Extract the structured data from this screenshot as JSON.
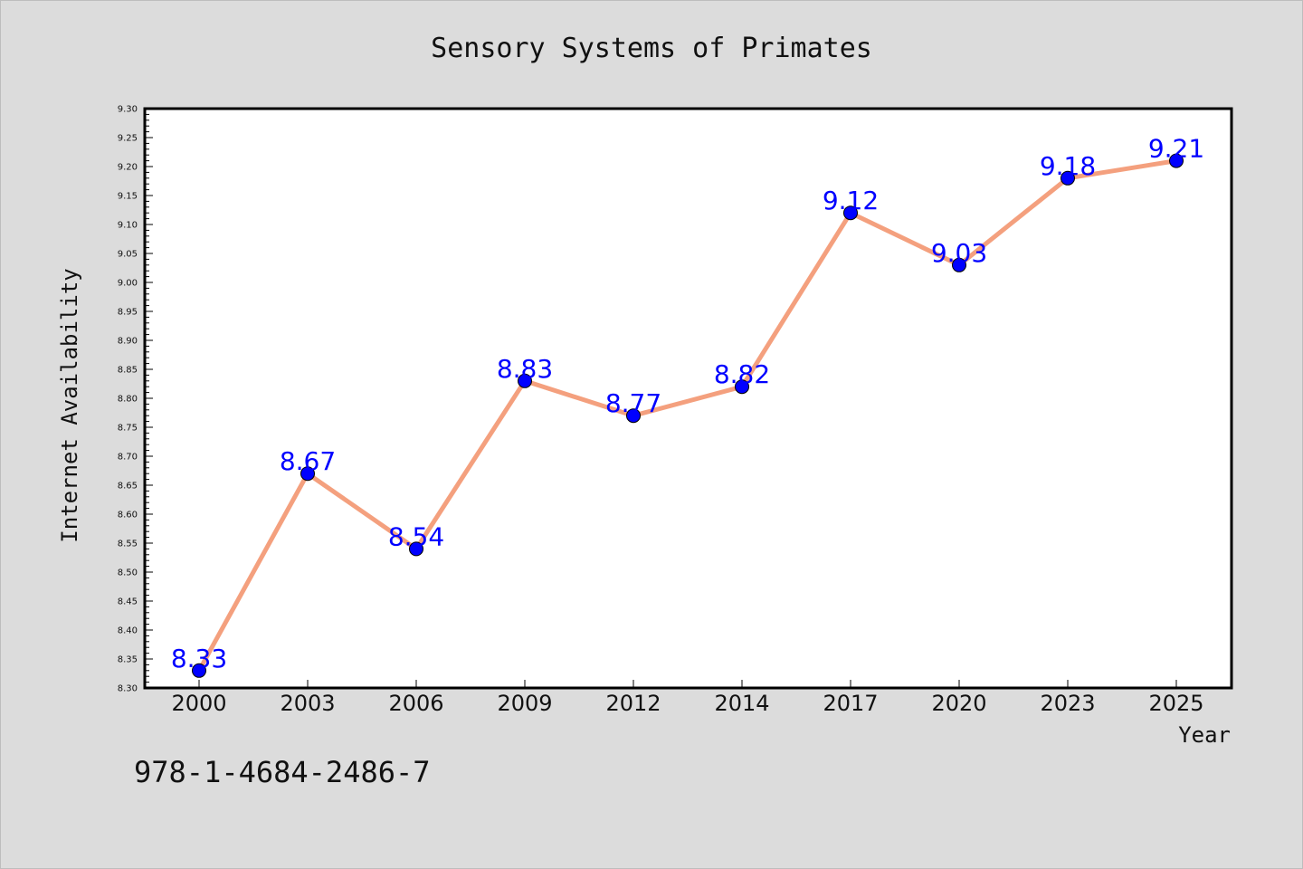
{
  "chart_data": {
    "type": "line",
    "title": "Sensory Systems of Primates",
    "xlabel": "Year",
    "ylabel": "Internet Availability",
    "categories": [
      "2000",
      "2003",
      "2006",
      "2009",
      "2012",
      "2014",
      "2017",
      "2020",
      "2023",
      "2025"
    ],
    "series": [
      {
        "values": [
          8.33,
          8.67,
          8.54,
          8.83,
          8.77,
          8.82,
          9.12,
          9.03,
          9.18,
          9.21
        ],
        "data_labels": [
          "8.33",
          "8.67",
          "8.54",
          "8.83",
          "8.77",
          "8.82",
          "9.12",
          "9.03",
          "9.18",
          "9.21"
        ],
        "line_color": "#f4a07e",
        "marker_color": "#0000ff"
      }
    ],
    "ylim": [
      8.3,
      9.3
    ],
    "yticks": [
      "8.30",
      "8.35",
      "8.40",
      "8.45",
      "8.50",
      "8.55",
      "8.60",
      "8.65",
      "8.70",
      "8.75",
      "8.80",
      "8.85",
      "8.90",
      "8.95",
      "9.00",
      "9.05",
      "9.10",
      "9.15",
      "9.20",
      "9.25",
      "9.30"
    ],
    "grid": false,
    "legend": "none"
  },
  "footer": {
    "isbn": "978-1-4684-2486-7"
  },
  "colors": {
    "background": "#dcdcdc",
    "plot_background": "#ffffff",
    "line": "#f4a07e",
    "marker": "#0000ff",
    "data_label": "#0000ff"
  }
}
